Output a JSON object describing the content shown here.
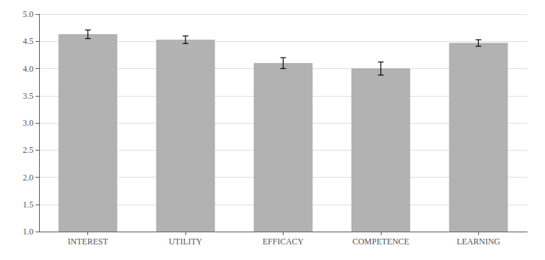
{
  "chart_data": {
    "type": "bar",
    "categories": [
      "INTEREST",
      "UTILITY",
      "EFFICACY",
      "COMPETENCE",
      "LEARNING"
    ],
    "values": [
      4.63,
      4.53,
      4.1,
      4.0,
      4.47
    ],
    "errors": [
      0.08,
      0.07,
      0.1,
      0.12,
      0.06
    ],
    "color": "#b2b2b2",
    "ylim": [
      1,
      5
    ],
    "yticks": [
      {
        "value": 1,
        "label": "1.0"
      },
      1.5,
      {
        "value": 2,
        "label": "2.0"
      },
      2.5,
      {
        "value": 3,
        "label": "3.0"
      },
      3.5,
      {
        "value": 4,
        "label": "4.0"
      },
      4.5,
      {
        "value": 5,
        "label": "5.0"
      }
    ],
    "grid": true
  }
}
